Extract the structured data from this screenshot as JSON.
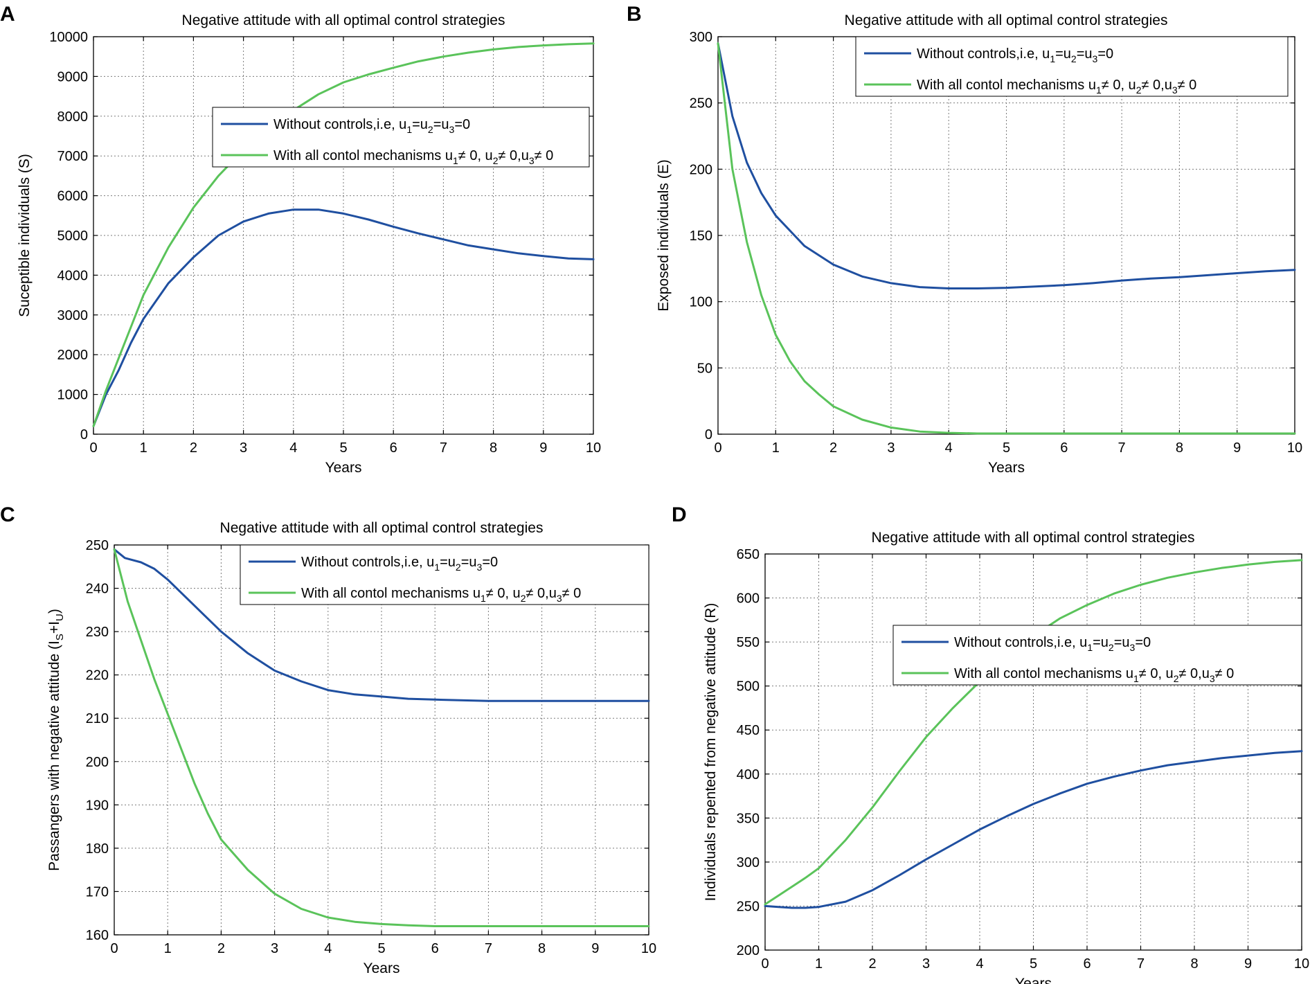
{
  "figure": {
    "colors": {
      "without_controls": "#1f4fa0",
      "with_controls": "#5ac35a"
    }
  },
  "chart_data": [
    {
      "panel": "A",
      "type": "line",
      "title": "Negative attitude with all optimal control strategies",
      "xlabel": "Years",
      "ylabel": "Suceptible individuals (S)",
      "xlim": [
        0,
        10
      ],
      "ylim": [
        0,
        10000
      ],
      "xticks": [
        0,
        1,
        2,
        3,
        4,
        5,
        6,
        7,
        8,
        9,
        10
      ],
      "yticks": [
        0,
        1000,
        2000,
        3000,
        4000,
        5000,
        6000,
        7000,
        8000,
        9000,
        10000
      ],
      "grid": true,
      "legend_position": "center-right",
      "series": [
        {
          "name": "Without controls,i.e, u1=u2=u3=0",
          "legend": {
            "text": "Without controls,i.e, u",
            "parts": [
              "1",
              "=u",
              "2",
              "=u",
              "3",
              "=0"
            ]
          },
          "x": [
            0,
            0.25,
            0.5,
            0.75,
            1,
            1.5,
            2,
            2.5,
            3,
            3.5,
            4,
            4.5,
            5,
            5.5,
            6,
            6.5,
            7,
            7.5,
            8,
            8.5,
            9,
            9.5,
            10
          ],
          "values": [
            200,
            1000,
            1600,
            2300,
            2900,
            3800,
            4450,
            5000,
            5350,
            5550,
            5650,
            5650,
            5550,
            5400,
            5220,
            5050,
            4900,
            4750,
            4650,
            4550,
            4480,
            4420,
            4400
          ]
        },
        {
          "name": "With all contol mechanisms u1≠ 0, u2≠ 0,u3≠ 0",
          "legend": {
            "text": "With all contol mechanisms u",
            "parts": [
              "1",
              "≠ 0, u",
              "2",
              "≠ 0,u",
              "3",
              "≠ 0"
            ]
          },
          "x": [
            0,
            0.25,
            0.5,
            0.75,
            1,
            1.5,
            2,
            2.5,
            3,
            3.5,
            4,
            4.5,
            5,
            5.5,
            6,
            6.5,
            7,
            7.5,
            8,
            8.5,
            9,
            9.5,
            10
          ],
          "values": [
            200,
            1100,
            1900,
            2700,
            3500,
            4700,
            5700,
            6500,
            7150,
            7700,
            8150,
            8550,
            8850,
            9050,
            9220,
            9380,
            9500,
            9600,
            9680,
            9740,
            9780,
            9810,
            9830
          ]
        }
      ]
    },
    {
      "panel": "B",
      "type": "line",
      "title": "Negative attitude with all optimal control strategies",
      "xlabel": "Years",
      "ylabel": "Exposed individuals (E)",
      "xlim": [
        0,
        10
      ],
      "ylim": [
        0,
        300
      ],
      "xticks": [
        0,
        1,
        2,
        3,
        4,
        5,
        6,
        7,
        8,
        9,
        10
      ],
      "yticks": [
        0,
        50,
        100,
        150,
        200,
        250,
        300
      ],
      "grid": true,
      "legend_position": "top-right",
      "series": [
        {
          "name": "Without controls,i.e, u1=u2=u3=0",
          "legend": {
            "text": "Without controls,i.e, u",
            "parts": [
              "1",
              "=u",
              "2",
              "=u",
              "3",
              "=0"
            ]
          },
          "x": [
            0,
            0.25,
            0.5,
            0.75,
            1,
            1.5,
            2,
            2.5,
            3,
            3.5,
            4,
            4.5,
            5,
            5.5,
            6,
            6.5,
            7,
            7.5,
            8,
            8.5,
            9,
            9.5,
            10
          ],
          "values": [
            295,
            240,
            205,
            182,
            165,
            142,
            128,
            119,
            114,
            111,
            110,
            110,
            110.5,
            111.5,
            112.5,
            114,
            116,
            117.5,
            118.5,
            120,
            121.5,
            123,
            124
          ]
        },
        {
          "name": "With all contol mechanisms u1≠ 0, u2≠ 0,u3≠ 0",
          "legend": {
            "text": "With all contol mechanisms u",
            "parts": [
              "1",
              "≠ 0, u",
              "2",
              "≠ 0,u",
              "3",
              "≠ 0"
            ]
          },
          "x": [
            0,
            0.25,
            0.5,
            0.75,
            1,
            1.25,
            1.5,
            1.75,
            2,
            2.5,
            3,
            3.5,
            4,
            4.5,
            5,
            6,
            7,
            8,
            9,
            10
          ],
          "values": [
            295,
            200,
            145,
            105,
            75,
            55,
            40,
            30,
            21,
            11,
            5,
            2,
            1,
            0.5,
            0.5,
            0.5,
            0.5,
            0.5,
            0.5,
            0.5
          ]
        }
      ]
    },
    {
      "panel": "C",
      "type": "line",
      "title": "Negative attitude with all optimal control strategies",
      "xlabel": "Years",
      "ylabel": "Passangers with negative attitude (I",
      "ylabel_parts": [
        "S",
        "+I",
        "U",
        ")"
      ],
      "xlim": [
        0,
        10
      ],
      "ylim": [
        160,
        250
      ],
      "xticks": [
        0,
        1,
        2,
        3,
        4,
        5,
        6,
        7,
        8,
        9,
        10
      ],
      "yticks": [
        160,
        170,
        180,
        190,
        200,
        210,
        220,
        230,
        240,
        250
      ],
      "grid": true,
      "legend_position": "top-right",
      "series": [
        {
          "name": "Without controls,i.e, u1=u2=u3=0",
          "legend": {
            "text": "Without controls,i.e, u",
            "parts": [
              "1",
              "=u",
              "2",
              "=u",
              "3",
              "=0"
            ]
          },
          "x": [
            0,
            0.2,
            0.5,
            0.75,
            1,
            1.5,
            2,
            2.5,
            3,
            3.5,
            4,
            4.5,
            5,
            5.5,
            6,
            7,
            8,
            9,
            10
          ],
          "values": [
            249,
            247,
            246,
            244.5,
            242,
            236,
            230,
            225,
            221,
            218.5,
            216.5,
            215.5,
            215,
            214.5,
            214.3,
            214,
            214,
            214,
            214
          ]
        },
        {
          "name": "With all contol mechanisms u1≠ 0, u2≠ 0,u3≠ 0",
          "legend": {
            "text": "With all contol mechanisms u",
            "parts": [
              "1",
              "≠ 0, u",
              "2",
              "≠ 0,u",
              "3",
              "≠ 0"
            ]
          },
          "x": [
            0,
            0.25,
            0.5,
            0.75,
            1,
            1.25,
            1.5,
            1.75,
            2,
            2.5,
            3,
            3.5,
            4,
            4.5,
            5,
            5.5,
            6,
            7,
            8,
            9,
            10
          ],
          "values": [
            249,
            237,
            228,
            219,
            211,
            203,
            195,
            188,
            182,
            175,
            169.5,
            166,
            164,
            163,
            162.5,
            162.2,
            162,
            162,
            162,
            162,
            162
          ]
        }
      ]
    },
    {
      "panel": "D",
      "type": "line",
      "title": "Negative attitude with all optimal control strategies",
      "xlabel": "Years",
      "ylabel": "Individuals repented from negative attitude (R)",
      "xlim": [
        0,
        10
      ],
      "ylim": [
        200,
        650
      ],
      "xticks": [
        0,
        1,
        2,
        3,
        4,
        5,
        6,
        7,
        8,
        9,
        10
      ],
      "yticks": [
        200,
        250,
        300,
        350,
        400,
        450,
        500,
        550,
        600,
        650
      ],
      "grid": true,
      "legend_position": "center-right",
      "series": [
        {
          "name": "Without controls,i.e, u1=u2=u3=0",
          "legend": {
            "text": "Without controls,i.e, u",
            "parts": [
              "1",
              "=u",
              "2",
              "=u",
              "3",
              "=0"
            ]
          },
          "x": [
            0,
            0.25,
            0.5,
            0.75,
            1,
            1.5,
            2,
            2.5,
            3,
            3.5,
            4,
            4.5,
            5,
            5.5,
            6,
            6.5,
            7,
            7.5,
            8,
            8.5,
            9,
            9.5,
            10
          ],
          "values": [
            250,
            249,
            248,
            248,
            249,
            255,
            268,
            285,
            303,
            320,
            337,
            352,
            366,
            378,
            389,
            397,
            404,
            410,
            414,
            418,
            421,
            424,
            426
          ]
        },
        {
          "name": "With all contol mechanisms u1≠ 0, u2≠ 0,u3≠ 0",
          "legend": {
            "text": "With all contol mechanisms u",
            "parts": [
              "1",
              "≠ 0, u",
              "2",
              "≠ 0,u",
              "3",
              "≠ 0"
            ]
          },
          "x": [
            0,
            0.25,
            0.5,
            0.75,
            1,
            1.5,
            2,
            2.5,
            3,
            3.5,
            4,
            4.5,
            5,
            5.5,
            6,
            6.5,
            7,
            7.5,
            8,
            8.5,
            9,
            9.5,
            10
          ],
          "values": [
            252,
            262,
            272,
            282,
            293,
            325,
            362,
            403,
            442,
            475,
            505,
            532,
            557,
            577,
            592,
            605,
            615,
            623,
            629,
            634,
            638,
            641,
            643
          ]
        }
      ]
    }
  ]
}
